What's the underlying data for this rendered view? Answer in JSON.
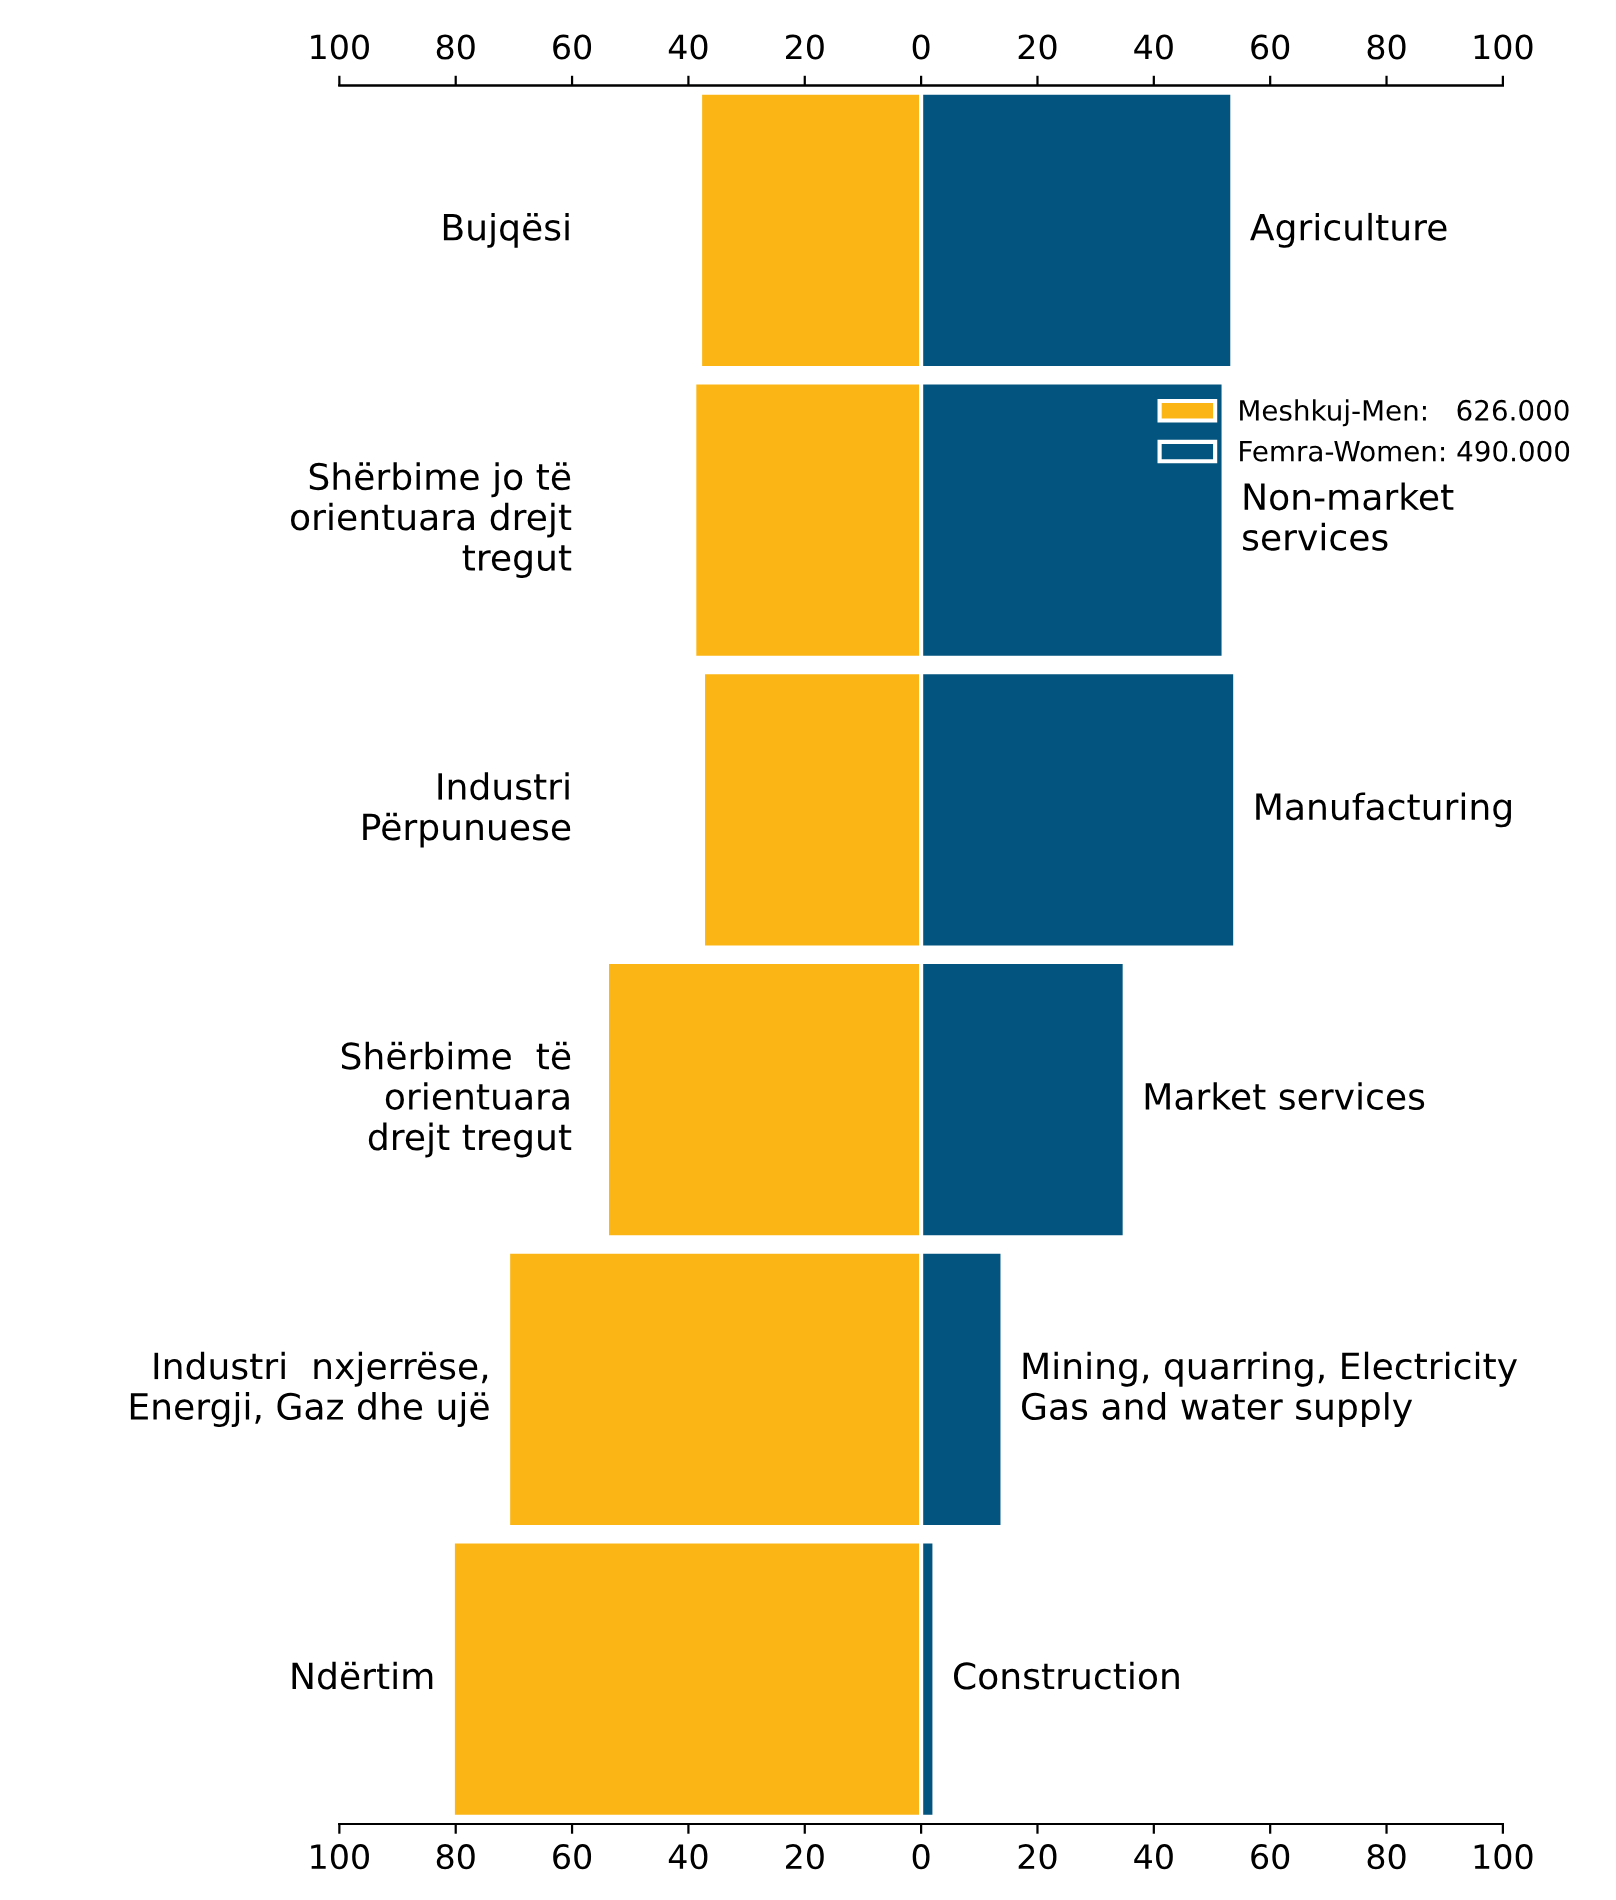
{
  "chart_data": {
    "type": "bar",
    "orientation": "horizontal",
    "stacked": true,
    "categories": [
      "Agriculture",
      "Non-market\nservices",
      "Manufacturing",
      "Market services",
      "Mining, quarring, Electricity\nGas and water supply",
      "Construction"
    ],
    "annotations": [
      "Bujqësi",
      "Shërbime jo të\norientuara drejt\ntregut",
      "Industri\nPërpunuese",
      "Shërbime  të\norientuara\ndrejt tregut",
      "Industri  nxjerrëse,\nEnergji, Gaz dhe ujë",
      "Ndërtim"
    ],
    "series": [
      {
        "name": "Meshkuj-Men:   626.000",
        "color": "#fbb616",
        "values": [
          -38,
          -39,
          -37.5,
          -54,
          -71,
          -80.5
        ]
      },
      {
        "name": "Femra-Women: 490.000",
        "color": "#03547e",
        "values": [
          53.5,
          52,
          54,
          35,
          14,
          2.3
        ]
      }
    ],
    "xlim": [
      -100,
      100
    ],
    "xticks": [
      {
        "value": -100,
        "label": "100"
      },
      {
        "value": -80,
        "label": "80"
      },
      {
        "value": -60,
        "label": "60"
      },
      {
        "value": -40,
        "label": "40"
      },
      {
        "value": -20,
        "label": "20"
      },
      0,
      20,
      40,
      60,
      80,
      100
    ],
    "x2lim": [
      -100,
      100
    ],
    "x2ticks": [
      {
        "value": -100,
        "label": "100"
      },
      {
        "value": -80,
        "label": "80"
      },
      {
        "value": -60,
        "label": "60"
      },
      {
        "value": -40,
        "label": "40"
      },
      {
        "value": -20,
        "label": "20"
      },
      0,
      20,
      40,
      60,
      80,
      100
    ],
    "tick_labels": "x",
    "grid": false,
    "legend": "right"
  }
}
